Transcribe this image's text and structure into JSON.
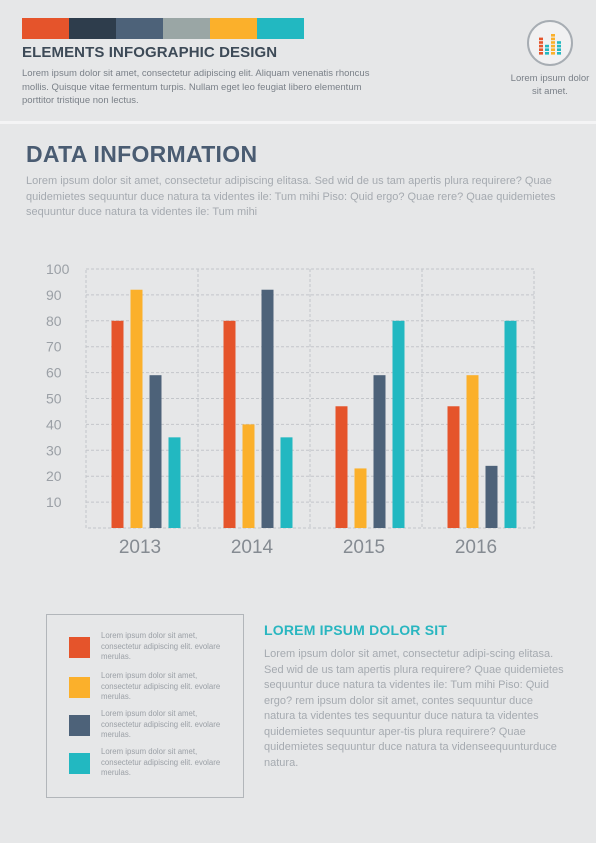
{
  "header": {
    "colors": [
      "#e5542b",
      "#2e3d4c",
      "#4d6279",
      "#9aa6a5",
      "#fbb02b",
      "#22b8c1"
    ],
    "title": "ELEMENTS INFOGRAPHIC DESIGN",
    "text": "Lorem ipsum dolor sit amet, consectetur adipiscing elit. Aliquam venenatis rhoncus mollis. Quisque vitae fermentum turpis. Nullam eget leo feugiat libero elementum porttitor tristique non lectus.",
    "badge_icon": "bar-chart-icon",
    "badge_text": "Lorem ipsum dolor sit amet."
  },
  "section": {
    "title": "DATA INFORMATION",
    "text": "Lorem ipsum dolor sit amet, consectetur adipiscing elitasa. Sed wid de us tam apertis plura requirere? Quae quidemietes sequuntur duce natura ta videntes ile: Tum mihi Piso: Quid ergo? Quae rere? Quae quidemietes sequuntur duce natura ta videntes ile: Tum mihi"
  },
  "chart_data": {
    "type": "bar",
    "categories": [
      "2013",
      "2014",
      "2015",
      "2016"
    ],
    "series": [
      {
        "color": "#e5542b",
        "values": [
          80,
          80,
          47,
          47
        ]
      },
      {
        "color": "#fbb02b",
        "values": [
          92,
          40,
          23,
          59
        ]
      },
      {
        "color": "#4d6279",
        "values": [
          59,
          92,
          59,
          24
        ]
      },
      {
        "color": "#22b8c1",
        "values": [
          35,
          35,
          80,
          80
        ]
      }
    ],
    "yticks": [
      10,
      20,
      30,
      40,
      50,
      60,
      70,
      80,
      90,
      100
    ],
    "ylim": [
      0,
      100
    ],
    "grid": true,
    "title": "",
    "xlabel": "",
    "ylabel": ""
  },
  "legend": {
    "items": [
      {
        "color": "#e5542b",
        "text": "Lorem ipsum dolor sit amet, consectetur adipiscing elit. evolare merulas."
      },
      {
        "color": "#fbb02b",
        "text": "Lorem ipsum dolor sit amet, consectetur adipiscing elit. evolare merulas."
      },
      {
        "color": "#4d6279",
        "text": "Lorem ipsum dolor sit amet, consectetur adipiscing elit. evolare merulas."
      },
      {
        "color": "#22b8c1",
        "text": "Lorem ipsum dolor sit amet, consectetur adipiscing elit. evolare merulas."
      }
    ]
  },
  "side": {
    "title": "LOREM IPSUM DOLOR SIT",
    "text": "Lorem ipsum dolor sit amet, consectetur adipi-scing elitasa. Sed wid de us tam apertis plura requirere? Quae quidemietes sequuntur duce natura ta videntes ile: Tum mihi Piso: Quid ergo? rem ipsum dolor sit amet, contes sequuntur duce natura ta videntes tes sequuntur duce natura ta videntes quidemietes sequuntur aper-tis plura requirere? Quae quidemietes sequuntur duce natura ta videnseequunturduce natura."
  }
}
